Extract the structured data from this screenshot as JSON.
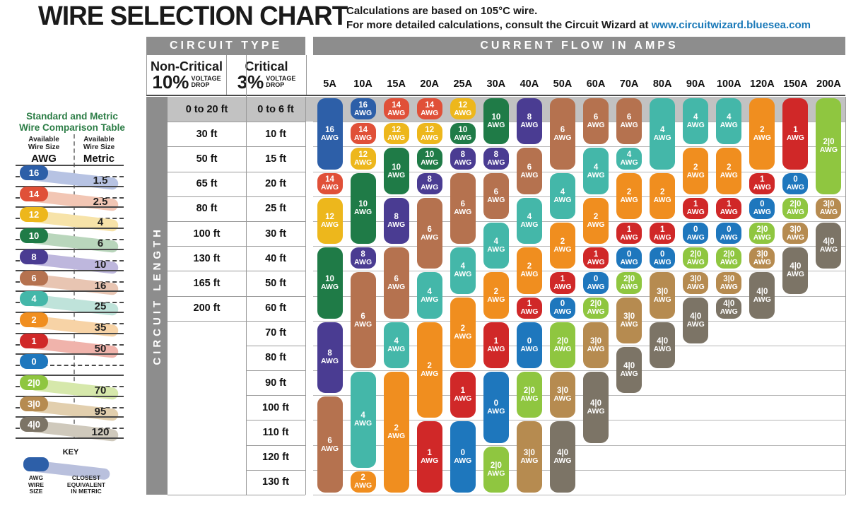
{
  "title": "WIRE SELECTION CHART",
  "subtitle_line1": "Calculations are based on 105°C wire.",
  "subtitle_line2": "For more detailed calculations, consult the Circuit Wizard at",
  "subtitle_link": "www.circuitwizard.bluesea.com",
  "headers": {
    "circuit_type": "CIRCUIT TYPE",
    "current_flow": "CURRENT FLOW IN AMPS",
    "non_critical": "Non-Critical",
    "non_critical_pct": "10%",
    "critical": "Critical",
    "critical_pct": "3%",
    "voltage_drop": "VOLTAGE\nDROP",
    "circuit_length": "CIRCUIT LENGTH"
  },
  "comparison_table": {
    "title_line1": "Standard and Metric",
    "title_line2": "Wire Comparison Table",
    "col1_header": "Available\nWire Size",
    "col1_unit": "AWG",
    "col2_header": "Available\nWire Size",
    "col2_unit": "Metric",
    "rows": [
      {
        "awg": "16",
        "metric": "1.5",
        "color": "#2d5fa8",
        "tint": "#b7c3e3"
      },
      {
        "awg": "14",
        "metric": "2.5",
        "color": "#e05038",
        "tint": "#f2c6b4"
      },
      {
        "awg": "12",
        "metric": "4",
        "color": "#edb71c",
        "tint": "#f7e3a9"
      },
      {
        "awg": "10",
        "metric": "6",
        "color": "#1f7b47",
        "tint": "#b9d6bc"
      },
      {
        "awg": "8",
        "metric": "10",
        "color": "#4a3c92",
        "tint": "#beb7dd"
      },
      {
        "awg": "6",
        "metric": "16",
        "color": "#b5724f",
        "tint": "#e8c5b2"
      },
      {
        "awg": "4",
        "metric": "25",
        "color": "#44b7a9",
        "tint": "#bfe3da"
      },
      {
        "awg": "2",
        "metric": "35",
        "color": "#f08e1f",
        "tint": "#f7d3a6"
      },
      {
        "awg": "1",
        "metric": "50",
        "color": "#d02828",
        "tint": "#f0b3ab"
      },
      {
        "awg": "0",
        "metric": "",
        "color": "#1e77bd",
        "tint": "#b9cfe8"
      },
      {
        "awg": "2|0",
        "metric": "70",
        "color": "#8fc640",
        "tint": "#d6e8ab"
      },
      {
        "awg": "3|0",
        "metric": "95",
        "color": "#b68b50",
        "tint": "#e2cfae"
      },
      {
        "awg": "4|0",
        "metric": "120",
        "color": "#7c7466",
        "tint": "#cfc9bc"
      }
    ],
    "key": {
      "label": "KEY",
      "pill_color": "#2d5fa8",
      "band_tint": "#b9c0dd",
      "left_label": "AWG\nWIRE\nSIZE",
      "right_label": "CLOSEST\nEQUIVALENT\nIN METRIC"
    }
  },
  "chart_data": {
    "type": "table",
    "title": "WIRE SELECTION CHART",
    "x_header": "CURRENT FLOW IN AMPS",
    "y_header": "CIRCUIT LENGTH",
    "first_row_highlight": "#c2c2c2",
    "amp_columns": [
      "5A",
      "10A",
      "15A",
      "20A",
      "25A",
      "30A",
      "40A",
      "50A",
      "60A",
      "70A",
      "80A",
      "90A",
      "100A",
      "120A",
      "150A",
      "200A"
    ],
    "length_rows": [
      {
        "non_critical": "0 to 20 ft",
        "critical": "0 to 6 ft"
      },
      {
        "non_critical": "30 ft",
        "critical": "10 ft"
      },
      {
        "non_critical": "50 ft",
        "critical": "15 ft"
      },
      {
        "non_critical": "65 ft",
        "critical": "20 ft"
      },
      {
        "non_critical": "80 ft",
        "critical": "25 ft"
      },
      {
        "non_critical": "100 ft",
        "critical": "30 ft"
      },
      {
        "non_critical": "130 ft",
        "critical": "40 ft"
      },
      {
        "non_critical": "165 ft",
        "critical": "50 ft"
      },
      {
        "non_critical": "200 ft",
        "critical": "60 ft"
      },
      {
        "non_critical": "",
        "critical": "70 ft"
      },
      {
        "non_critical": "",
        "critical": "80 ft"
      },
      {
        "non_critical": "",
        "critical": "90 ft"
      },
      {
        "non_critical": "",
        "critical": "100 ft"
      },
      {
        "non_critical": "",
        "critical": "110 ft"
      },
      {
        "non_critical": "",
        "critical": "120 ft"
      },
      {
        "non_critical": "",
        "critical": "130 ft"
      }
    ],
    "awg_colors": {
      "16": "#2d5fa8",
      "14": "#e05038",
      "12": "#edb71c",
      "10": "#1f7b47",
      "8": "#4a3c92",
      "6": "#b5724f",
      "4": "#44b7a9",
      "2": "#f08e1f",
      "1": "#d02828",
      "0": "#1e77bd",
      "2|0": "#8fc640",
      "3|0": "#b68b50",
      "4|0": "#7c7466"
    },
    "unit_label": "AWG",
    "columns": {
      "5A": [
        [
          "16",
          1,
          3
        ],
        [
          "14",
          4,
          1
        ],
        [
          "12",
          5,
          2
        ],
        [
          "10",
          7,
          3
        ],
        [
          "8",
          10,
          3
        ],
        [
          "6",
          13,
          4
        ]
      ],
      "10A": [
        [
          "16",
          1,
          1
        ],
        [
          "14",
          2,
          1
        ],
        [
          "12",
          3,
          1
        ],
        [
          "10",
          4,
          3
        ],
        [
          "8",
          7,
          1
        ],
        [
          "6",
          8,
          4
        ],
        [
          "4",
          12,
          4
        ],
        [
          "2",
          16,
          1
        ]
      ],
      "15A": [
        [
          "14",
          1,
          1
        ],
        [
          "12",
          2,
          1
        ],
        [
          "10",
          3,
          2
        ],
        [
          "8",
          5,
          2
        ],
        [
          "6",
          7,
          3
        ],
        [
          "4",
          10,
          2
        ],
        [
          "2",
          12,
          5
        ]
      ],
      "20A": [
        [
          "14",
          1,
          1
        ],
        [
          "12",
          2,
          1
        ],
        [
          "10",
          3,
          1
        ],
        [
          "8",
          4,
          1
        ],
        [
          "6",
          5,
          3
        ],
        [
          "4",
          8,
          2
        ],
        [
          "2",
          10,
          4
        ],
        [
          "1",
          14,
          3
        ]
      ],
      "25A": [
        [
          "12",
          1,
          1
        ],
        [
          "10",
          2,
          1
        ],
        [
          "8",
          3,
          1
        ],
        [
          "6",
          4,
          3
        ],
        [
          "4",
          7,
          2
        ],
        [
          "2",
          9,
          3
        ],
        [
          "1",
          12,
          2
        ],
        [
          "0",
          14,
          3
        ]
      ],
      "30A": [
        [
          "10",
          1,
          2
        ],
        [
          "8",
          3,
          1
        ],
        [
          "6",
          4,
          2
        ],
        [
          "4",
          6,
          2
        ],
        [
          "2",
          8,
          2
        ],
        [
          "1",
          10,
          2
        ],
        [
          "0",
          12,
          3
        ],
        [
          "2|0",
          15,
          2
        ]
      ],
      "40A": [
        [
          "8",
          1,
          2
        ],
        [
          "6",
          3,
          2
        ],
        [
          "4",
          5,
          2
        ],
        [
          "2",
          7,
          2
        ],
        [
          "1",
          9,
          1
        ],
        [
          "0",
          10,
          2
        ],
        [
          "2|0",
          12,
          2
        ],
        [
          "3|0",
          14,
          3
        ]
      ],
      "50A": [
        [
          "6",
          1,
          3
        ],
        [
          "4",
          4,
          2
        ],
        [
          "2",
          6,
          2
        ],
        [
          "1",
          8,
          1
        ],
        [
          "0",
          9,
          1
        ],
        [
          "2|0",
          10,
          2
        ],
        [
          "3|0",
          12,
          2
        ],
        [
          "4|0",
          14,
          3
        ]
      ],
      "60A": [
        [
          "6",
          1,
          2
        ],
        [
          "4",
          3,
          2
        ],
        [
          "2",
          5,
          2
        ],
        [
          "1",
          7,
          1
        ],
        [
          "0",
          8,
          1
        ],
        [
          "2|0",
          9,
          1
        ],
        [
          "3|0",
          10,
          2
        ],
        [
          "4|0",
          12,
          3
        ]
      ],
      "70A": [
        [
          "6",
          1,
          2
        ],
        [
          "4",
          3,
          1
        ],
        [
          "2",
          4,
          2
        ],
        [
          "1",
          6,
          1
        ],
        [
          "0",
          7,
          1
        ],
        [
          "2|0",
          8,
          1
        ],
        [
          "3|0",
          9,
          2
        ],
        [
          "4|0",
          11,
          2
        ]
      ],
      "80A": [
        [
          "4",
          1,
          3
        ],
        [
          "2",
          4,
          2
        ],
        [
          "1",
          6,
          1
        ],
        [
          "0",
          7,
          1
        ],
        [
          "3|0",
          8,
          2
        ],
        [
          "4|0",
          10,
          2
        ]
      ],
      "90A": [
        [
          "4",
          1,
          2
        ],
        [
          "2",
          3,
          2
        ],
        [
          "1",
          5,
          1
        ],
        [
          "0",
          6,
          1
        ],
        [
          "2|0",
          7,
          1
        ],
        [
          "3|0",
          8,
          1
        ],
        [
          "4|0",
          9,
          2
        ]
      ],
      "100A": [
        [
          "4",
          1,
          2
        ],
        [
          "2",
          3,
          2
        ],
        [
          "1",
          5,
          1
        ],
        [
          "0",
          6,
          1
        ],
        [
          "2|0",
          7,
          1
        ],
        [
          "3|0",
          8,
          1
        ],
        [
          "4|0",
          9,
          1
        ]
      ],
      "120A": [
        [
          "2",
          1,
          3
        ],
        [
          "1",
          4,
          1
        ],
        [
          "0",
          5,
          1
        ],
        [
          "2|0",
          6,
          1
        ],
        [
          "3|0",
          7,
          1
        ],
        [
          "4|0",
          8,
          2
        ]
      ],
      "150A": [
        [
          "1",
          1,
          3
        ],
        [
          "0",
          4,
          1
        ],
        [
          "2|0",
          5,
          1
        ],
        [
          "3|0",
          6,
          1
        ],
        [
          "4|0",
          7,
          2
        ]
      ],
      "200A": [
        [
          "2|0",
          1,
          4
        ],
        [
          "3|0",
          5,
          1
        ],
        [
          "4|0",
          6,
          2
        ]
      ]
    }
  }
}
